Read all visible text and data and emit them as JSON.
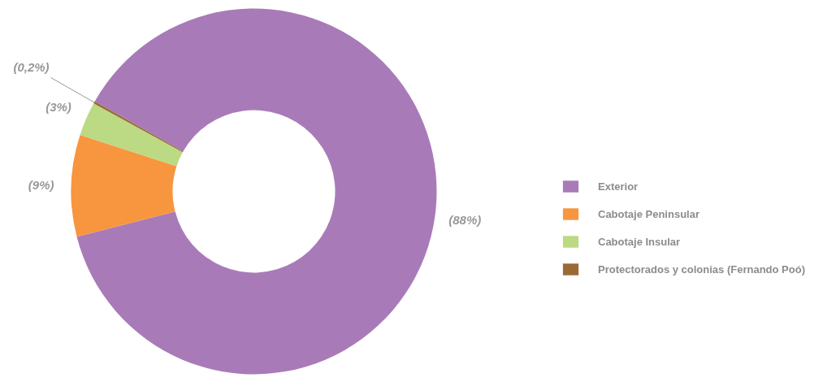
{
  "chart_data": {
    "type": "donut",
    "categories": [
      "Exterior",
      "Cabotaje Peninsular",
      "Cabotaje Insular",
      "Protectorados y colonias (Fernando Poó)"
    ],
    "values": [
      88,
      9,
      3,
      0.2
    ],
    "colors": [
      "#a87bb8",
      "#f7963f",
      "#bcd984",
      "#9a6a35"
    ],
    "value_labels": [
      "(88%)",
      "(9%)",
      "(3%)",
      "(0,2%)"
    ],
    "legend": "right"
  }
}
